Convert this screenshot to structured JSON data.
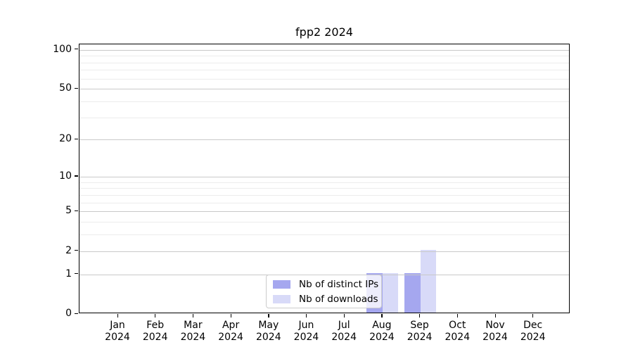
{
  "chart_data": {
    "type": "bar",
    "title": "fpp2 2024",
    "x_axis": {
      "categories": [
        "Jan",
        "Feb",
        "Mar",
        "Apr",
        "May",
        "Jun",
        "Jul",
        "Aug",
        "Sep",
        "Oct",
        "Nov",
        "Dec"
      ],
      "year_label": "2024"
    },
    "y_axis": {
      "scale": "log1p",
      "major_ticks": [
        0,
        1,
        2,
        5,
        10,
        20,
        50,
        100
      ],
      "minor_gridlines": [
        3,
        4,
        6,
        7,
        8,
        9,
        30,
        40,
        60,
        70,
        80,
        90
      ],
      "ylim": [
        0,
        110
      ]
    },
    "series": [
      {
        "name": "Nb of distinct IPs",
        "color": "#a5a7ef",
        "values": [
          0,
          0,
          0,
          0,
          0,
          0,
          0,
          1,
          1,
          0,
          0,
          0
        ]
      },
      {
        "name": "Nb of downloads",
        "color": "#d8daf8",
        "values": [
          0,
          0,
          0,
          0,
          0,
          0,
          0,
          1,
          2,
          0,
          0,
          0
        ]
      }
    ],
    "legend_position": "inside lower center",
    "grid": true
  },
  "colors": {
    "major_grid": "#c9c9c9",
    "minor_grid": "#ececec",
    "axis": "#000000",
    "background": "#ffffff"
  }
}
